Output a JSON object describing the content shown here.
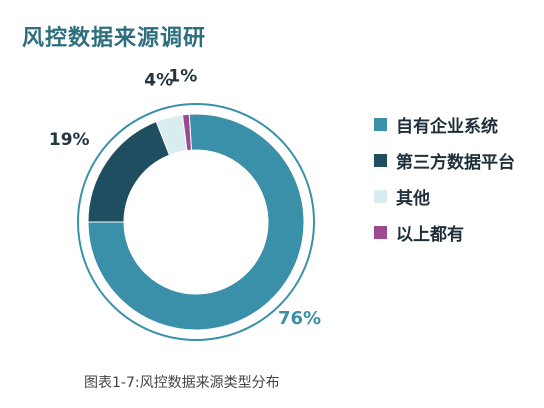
{
  "title": "风控数据来源调研",
  "caption": "图表1-7:风控数据来源类型分布",
  "chart_data": {
    "type": "pie",
    "style": "donut",
    "legend_position": "right",
    "slices": [
      {
        "name": "自有企业系统",
        "value": 76,
        "label": "76%",
        "color": "#3a90a8"
      },
      {
        "name": "第三方数据平台",
        "value": 19,
        "label": "19%",
        "color": "#1f4e60"
      },
      {
        "name": "其他",
        "value": 4,
        "label": "4%",
        "color": "#d9ecf0"
      },
      {
        "name": "以上都有",
        "value": 1,
        "label": "1%",
        "color": "#9b4a92"
      }
    ]
  }
}
